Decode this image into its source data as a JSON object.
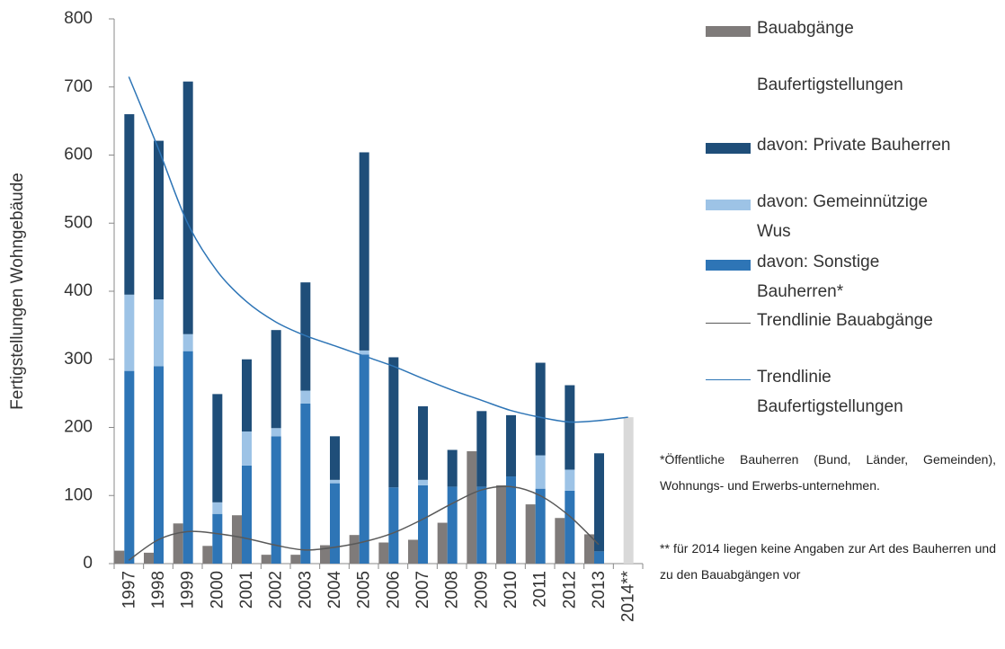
{
  "chart_data": {
    "type": "bar",
    "y_label": "Fertigstellungen Wohngebäude",
    "categories": [
      "1997",
      "1998",
      "1999",
      "2000",
      "2001",
      "2002",
      "2003",
      "2004",
      "2005",
      "2006",
      "2007",
      "2008",
      "2009",
      "2010",
      "2011",
      "2012",
      "2013",
      "2014**"
    ],
    "ylim": [
      0,
      800
    ],
    "yticks": [
      0,
      100,
      200,
      300,
      400,
      500,
      600,
      700,
      800
    ],
    "series": [
      {
        "name": "Bauabgänge",
        "type": "bar",
        "color": "#7f7b7a",
        "values": [
          19,
          16,
          59,
          26,
          71,
          13,
          13,
          27,
          42,
          31,
          35,
          60,
          165,
          115,
          87,
          67,
          43,
          null
        ]
      },
      {
        "name": "Baufertigstellungen",
        "type": "bar",
        "stack": true,
        "color": "#d9d9d9",
        "values": [
          null,
          null,
          null,
          null,
          null,
          null,
          null,
          null,
          null,
          null,
          null,
          null,
          null,
          null,
          null,
          null,
          null,
          215
        ]
      },
      {
        "name": "davon: Private Bauherren",
        "type": "bar",
        "stack": true,
        "color": "#1f4e79",
        "values": [
          265,
          233,
          371,
          159,
          106,
          144,
          159,
          64,
          291,
          191,
          108,
          54,
          111,
          90,
          136,
          124,
          144,
          null
        ]
      },
      {
        "name": "davon: Gemeinnützige Wus",
        "type": "bar",
        "stack": true,
        "color": "#9dc3e6",
        "values": [
          112,
          98,
          25,
          17,
          50,
          12,
          19,
          5,
          6,
          0,
          8,
          0,
          0,
          0,
          49,
          31,
          0,
          null
        ]
      },
      {
        "name": "davon: Sonstige Bauherren*",
        "type": "bar",
        "stack": true,
        "color": "#2e75b6",
        "values": [
          283,
          290,
          312,
          73,
          144,
          187,
          235,
          118,
          307,
          112,
          115,
          113,
          113,
          128,
          110,
          107,
          18,
          null
        ]
      },
      {
        "name": "Trendlinie Bauabgänge",
        "type": "line",
        "color": "#595959",
        "values": [
          5,
          35,
          47,
          44,
          37,
          27,
          20,
          24,
          32,
          45,
          65,
          88,
          108,
          113,
          100,
          70,
          28,
          null
        ]
      },
      {
        "name": "Trendlinie Baufertigstellungen",
        "type": "line",
        "color": "#2e75b6",
        "values": [
          715,
          610,
          500,
          430,
          385,
          355,
          335,
          320,
          305,
          290,
          272,
          255,
          240,
          225,
          215,
          208,
          210,
          215
        ]
      }
    ],
    "notes": [
      "*Öffentliche Bauherren (Bund, Länder, Gemeinden), Wohnungs- und Erwerbs-unternehmen.",
      "** für 2014 liegen keine Angaben zur Art des Bauherren und zu den Bauabgängen vor"
    ]
  }
}
